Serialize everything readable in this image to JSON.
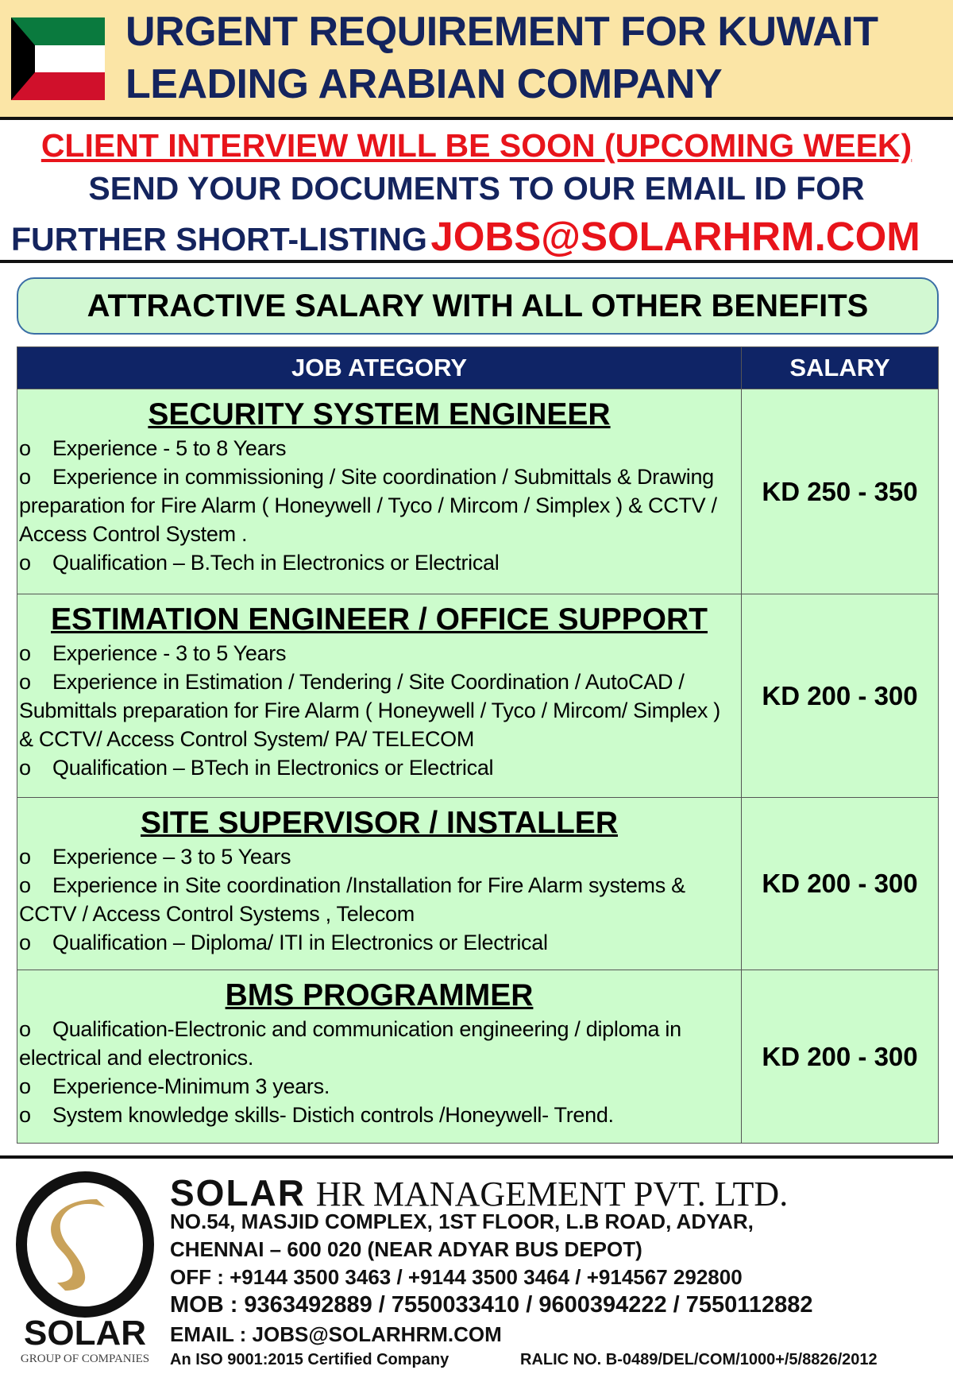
{
  "header": {
    "line1": "URGENT REQUIREMENT FOR KUWAIT",
    "line2": "LEADING ARABIAN COMPANY",
    "flag_colors": [
      "#0a7a3e",
      "#ffffff",
      "#d0102b",
      "#000000"
    ]
  },
  "notice": {
    "interview": "CLIENT INTERVIEW WILL BE SOON (UPCOMING WEEK)",
    "send": "SEND YOUR DOCUMENTS TO OUR EMAIL ID FOR",
    "further": "FURTHER SHORT-LISTING",
    "email": "JOBS@SOLARHRM.COM"
  },
  "benefits": "ATTRACTIVE SALARY WITH ALL OTHER BENEFITS",
  "table": {
    "col_job": "JOB ATEGORY",
    "col_salary": "SALARY",
    "rows": [
      {
        "title": "SECURITY SYSTEM ENGINEER",
        "salary": "KD 250 - 350",
        "items": [
          "Experience - 5 to 8 Years",
          "Experience in commissioning / Site coordination / Submittals & Drawing preparation for Fire Alarm ( Honeywell / Tyco / Mircom / Simplex )  & CCTV / Access Control System .",
          "Qualification – B.Tech in Electronics or Electrical"
        ]
      },
      {
        "title": "ESTIMATION ENGINEER / OFFICE SUPPORT",
        "salary": "KD 200 - 300",
        "items": [
          "Experience - 3 to 5 Years",
          "Experience in Estimation / Tendering / Site Coordination / AutoCAD / Submittals preparation for Fire Alarm ( Honeywell / Tyco / Mircom/ Simplex ) & CCTV/ Access Control System/ PA/ TELECOM",
          "Qualification – BTech in Electronics or Electrical"
        ]
      },
      {
        "title": "SITE SUPERVISOR / INSTALLER",
        "salary": "KD 200 - 300",
        "items": [
          "Experience – 3 to 5 Years",
          "Experience in Site coordination /Installation  for Fire Alarm systems  & CCTV / Access Control Systems , Telecom",
          "Qualification – Diploma/ ITI  in Electronics or Electrical"
        ]
      },
      {
        "title": "BMS PROGRAMMER",
        "salary": "KD 200 - 300",
        "items": [
          "Qualification-Electronic and communication engineering / diploma in electrical and electronics.",
          "Experience-Minimum 3 years.",
          "System knowledge skills- Distich controls /Honeywell- Trend."
        ]
      }
    ],
    "bullet": "o"
  },
  "company": {
    "logo_word": "SOLAR",
    "logo_sub": "GROUP OF COMPANIES",
    "brand": "SOLAR",
    "name": "HR MANAGEMENT PVT. LTD.",
    "address1": "NO.54, MASJID COMPLEX, 1ST FLOOR, L.B ROAD, ADYAR,",
    "address2": "CHENNAI – 600 020 (NEAR ADYAR BUS DEPOT)",
    "office": "OFF : +9144 3500 3463 / +9144 3500 3464 / +914567 292800",
    "mobile": "MOB :  9363492889 / 7550033410 / 9600394222 / 7550112882",
    "email": "EMAIL : JOBS@SOLARHRM.COM",
    "iso": "An ISO 9001:2015 Certified Company",
    "ralic": "RALIC NO. B-0489/DEL/COM/1000+/5/8826/2012",
    "gold": "#c9a25a"
  }
}
